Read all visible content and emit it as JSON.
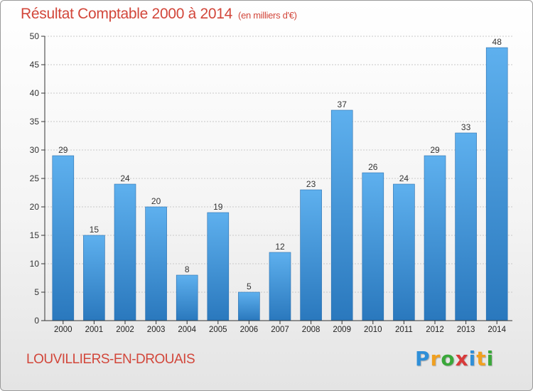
{
  "chart_data": {
    "type": "bar",
    "title": "Résultat Comptable 2000 à 2014",
    "subtitle": "(en milliers d'€)",
    "categories": [
      "2000",
      "2001",
      "2002",
      "2003",
      "2004",
      "2005",
      "2006",
      "2007",
      "2008",
      "2009",
      "2010",
      "2011",
      "2012",
      "2013",
      "2014"
    ],
    "values": [
      29,
      15,
      24,
      20,
      8,
      19,
      5,
      12,
      23,
      37,
      26,
      24,
      29,
      33,
      48
    ],
    "ylim": [
      0,
      50
    ],
    "yticks": [
      0,
      5,
      10,
      15,
      20,
      25,
      30,
      35,
      40,
      45,
      50
    ],
    "xlabel": "",
    "ylabel": "",
    "grid": true,
    "bar_color": "#3d8fd6"
  },
  "footer": {
    "commune": "LOUVILLIERS-EN-DROUAIS",
    "logo_letters": [
      {
        "ch": "P",
        "color": "#2f8fd8"
      },
      {
        "ch": "r",
        "color": "#f0a020"
      },
      {
        "ch": "o",
        "color": "#3aa83a"
      },
      {
        "ch": "x",
        "color": "#d83a3a"
      },
      {
        "ch": "i",
        "color": "#2f8fd8"
      },
      {
        "ch": "t",
        "color": "#f0a020"
      },
      {
        "ch": "i",
        "color": "#3aa83a"
      }
    ]
  },
  "colors": {
    "title": "#d2463a",
    "axis": "#333333",
    "grid": "#c8c8c8"
  }
}
